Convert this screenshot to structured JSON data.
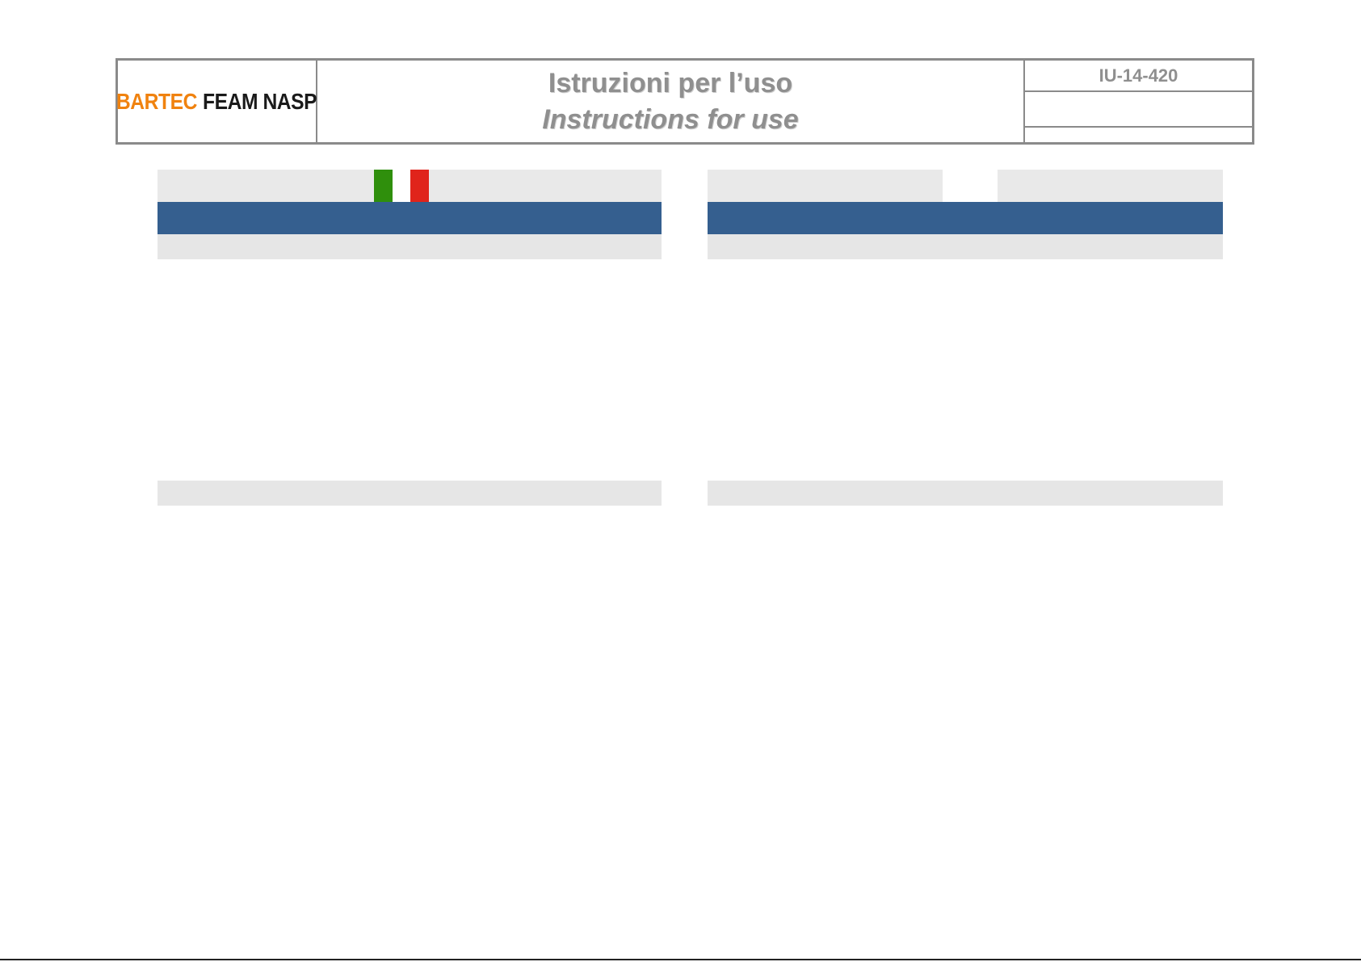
{
  "header": {
    "logo": {
      "brand_part1": "BARTEC",
      "brand_part2": "FEAM NASP"
    },
    "title_it": "Istruzioni per l’uso",
    "title_en": "Instructions for use",
    "doc_code": "IU-14-420"
  },
  "colors": {
    "brand_orange": "#f0820f",
    "header_grey_text": "#8f8f8f",
    "section_blue": "#355f8f",
    "band_grey": "#e9e9e9",
    "flag_green": "#2f8f0c",
    "flag_red": "#e0241b"
  },
  "columns": [
    {
      "language": "it",
      "flag": "italian-flag"
    },
    {
      "language": "en",
      "flag": "blank-flag"
    }
  ]
}
